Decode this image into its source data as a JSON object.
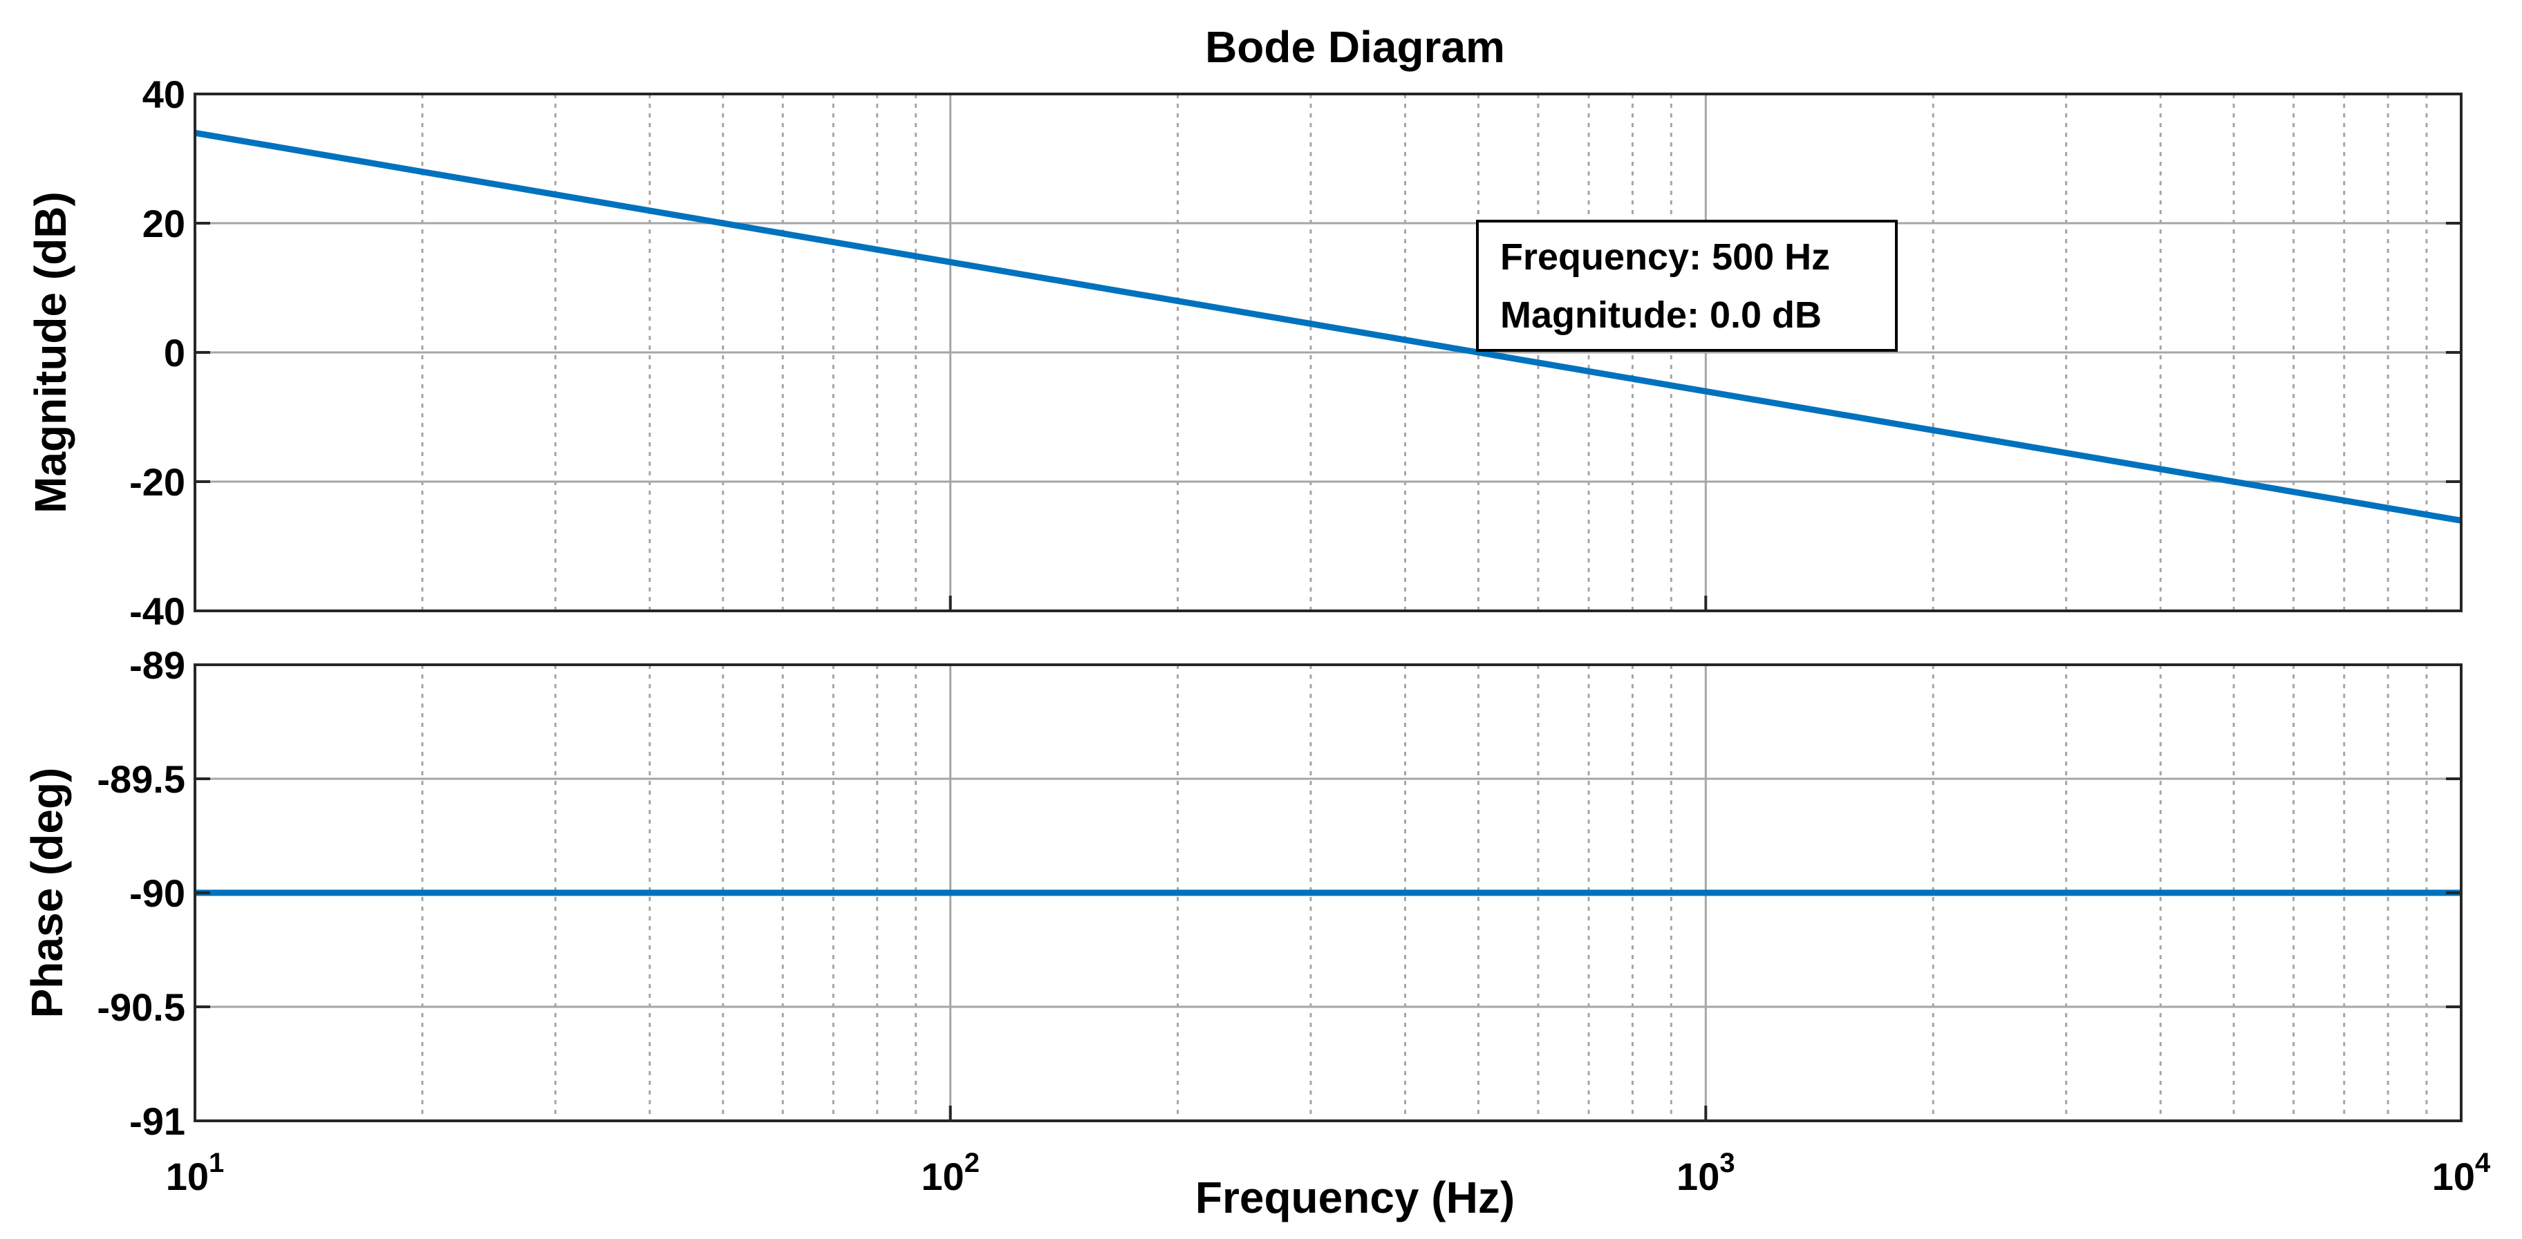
{
  "chart_data": [
    {
      "type": "line",
      "title": "Bode Diagram",
      "xlabel": "Frequency (Hz)",
      "ylabel": "Magnitude (dB)",
      "xscale": "log",
      "xlim": [
        10,
        10000
      ],
      "ylim": [
        -40,
        40
      ],
      "yticks": [
        40,
        20,
        0,
        -20,
        -40
      ],
      "ytick_labels": [
        "40",
        "20",
        "0",
        "-20",
        "-40"
      ],
      "grid": true,
      "series": [
        {
          "name": "Magnitude",
          "color": "#0072bd",
          "x": [
            10,
            100,
            500,
            1000,
            10000
          ],
          "y": [
            33.98,
            13.98,
            0.0,
            -6.02,
            -26.02
          ]
        }
      ],
      "annotation": {
        "lines": [
          "Frequency: 500 Hz",
          "Magnitude: 0.0 dB"
        ],
        "x": 500,
        "y": 0.0
      }
    },
    {
      "type": "line",
      "xlabel": "Frequency (Hz)",
      "ylabel": "Phase (deg)",
      "xscale": "log",
      "xlim": [
        10,
        10000
      ],
      "ylim": [
        -91,
        -89
      ],
      "yticks": [
        -89,
        -89.5,
        -90,
        -90.5,
        -91
      ],
      "ytick_labels": [
        "-89",
        "-89.5",
        "-90",
        "-90.5",
        "-91"
      ],
      "grid": true,
      "series": [
        {
          "name": "Phase",
          "color": "#0072bd",
          "x": [
            10,
            10000
          ],
          "y": [
            -90,
            -90
          ]
        }
      ]
    }
  ],
  "x_ticks": [
    {
      "value": 10,
      "base": "10",
      "exp": "1"
    },
    {
      "value": 100,
      "base": "10",
      "exp": "2"
    },
    {
      "value": 1000,
      "base": "10",
      "exp": "3"
    },
    {
      "value": 10000,
      "base": "10",
      "exp": "4"
    }
  ]
}
